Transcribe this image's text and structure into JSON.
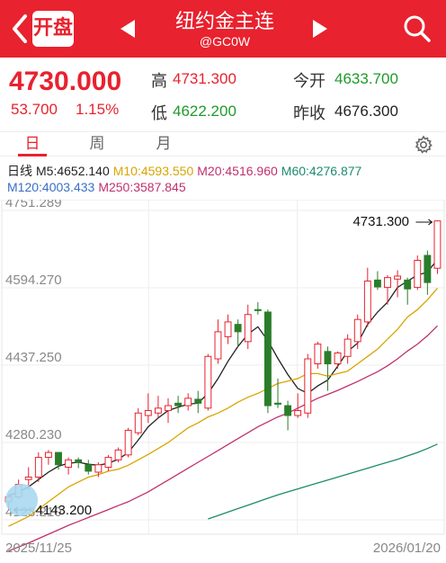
{
  "header": {
    "logo_text": "开盘",
    "title": "纽约金主连",
    "code": "@GC0W"
  },
  "quote": {
    "price": "4730.000",
    "change": "53.700",
    "change_pct": "1.15%",
    "high_label": "高",
    "high": "4731.300",
    "low_label": "低",
    "low": "4622.200",
    "open_label": "今开",
    "open": "4633.700",
    "prev_close_label": "昨收",
    "prev_close": "4676.300"
  },
  "tabs": [
    {
      "label": "日"
    },
    {
      "label": "周"
    },
    {
      "label": "月"
    }
  ],
  "indicators": {
    "line1": {
      "period": "日线",
      "m5": "M5:4652.140",
      "m10": "M10:4593.550",
      "m20": "M20:4516.960",
      "m60": "M60:4276.877"
    },
    "line2": {
      "m120": "M120:4003.433",
      "m250": "M250:3587.845"
    }
  },
  "colors": {
    "up": "#e8222e",
    "down": "#2a7d2a",
    "m5": "#222222",
    "m10": "#d9a400",
    "m20": "#c0306e",
    "m60": "#1e8a6e",
    "m120": "#3a6fc4"
  },
  "chart_data": {
    "type": "candlestick",
    "y_ticks": [
      "4751.289",
      "4594.270",
      "4437.250",
      "4280.230",
      "4123.210"
    ],
    "ylim": [
      4123.21,
      4751.289
    ],
    "x_labels": [
      "2025/11/25",
      "2026/01/20"
    ],
    "max_label": "4731.300",
    "min_label": "4143.200",
    "candles": [
      [
        4160,
        4175,
        4143,
        4170
      ],
      [
        4170,
        4205,
        4165,
        4195
      ],
      [
        4205,
        4230,
        4185,
        4210
      ],
      [
        4210,
        4260,
        4200,
        4250
      ],
      [
        4250,
        4265,
        4235,
        4260
      ],
      [
        4260,
        4255,
        4225,
        4235
      ],
      [
        4230,
        4250,
        4215,
        4245
      ],
      [
        4245,
        4250,
        4228,
        4240
      ],
      [
        4235,
        4245,
        4215,
        4222
      ],
      [
        4220,
        4240,
        4210,
        4235
      ],
      [
        4230,
        4255,
        4222,
        4250
      ],
      [
        4245,
        4270,
        4240,
        4265
      ],
      [
        4255,
        4310,
        4250,
        4305
      ],
      [
        4300,
        4350,
        4295,
        4340
      ],
      [
        4335,
        4380,
        4320,
        4345
      ],
      [
        4340,
        4375,
        4330,
        4350
      ],
      [
        4345,
        4370,
        4320,
        4355
      ],
      [
        4360,
        4375,
        4340,
        4355
      ],
      [
        4355,
        4380,
        4345,
        4370
      ],
      [
        4368,
        4385,
        4340,
        4360
      ],
      [
        4350,
        4460,
        4345,
        4455
      ],
      [
        4450,
        4530,
        4440,
        4505
      ],
      [
        4495,
        4540,
        4480,
        4525
      ],
      [
        4520,
        4530,
        4475,
        4505
      ],
      [
        4485,
        4560,
        4470,
        4540
      ],
      [
        4550,
        4565,
        4540,
        4548
      ],
      [
        4545,
        4550,
        4340,
        4355
      ],
      [
        4360,
        4410,
        4350,
        4358
      ],
      [
        4355,
        4365,
        4305,
        4335
      ],
      [
        4335,
        4380,
        4330,
        4345
      ],
      [
        4340,
        4460,
        4330,
        4450
      ],
      [
        4440,
        4485,
        4430,
        4480
      ],
      [
        4465,
        4475,
        4385,
        4440
      ],
      [
        4440,
        4465,
        4430,
        4462
      ],
      [
        4455,
        4500,
        4440,
        4490
      ],
      [
        4485,
        4540,
        4470,
        4530
      ],
      [
        4525,
        4635,
        4515,
        4608
      ],
      [
        4610,
        4628,
        4590,
        4596
      ],
      [
        4595,
        4620,
        4560,
        4615
      ],
      [
        4612,
        4630,
        4575,
        4618
      ],
      [
        4610,
        4615,
        4560,
        4592
      ],
      [
        4595,
        4660,
        4590,
        4650
      ],
      [
        4660,
        4670,
        4580,
        4605
      ],
      [
        4634,
        4731.3,
        4622.2,
        4730
      ]
    ],
    "series": [
      {
        "name": "M5",
        "values": [
          4172,
          4180,
          4190,
          4205,
          4220,
          4232,
          4238,
          4240,
          4236,
          4234,
          4238,
          4246,
          4260,
          4285,
          4312,
          4330,
          4345,
          4352,
          4358,
          4360,
          4380,
          4410,
          4445,
          4475,
          4500,
          4515,
          4487,
          4451,
          4418,
          4390,
          4380,
          4395,
          4407,
          4435,
          4465,
          4482,
          4520,
          4545,
          4565,
          4595,
          4608,
          4620,
          4626,
          4652
        ]
      },
      {
        "name": "M10",
        "values": [
          4110,
          4120,
          4130,
          4145,
          4160,
          4175,
          4190,
          4200,
          4210,
          4215,
          4222,
          4226,
          4234,
          4245,
          4256,
          4268,
          4280,
          4295,
          4310,
          4320,
          4332,
          4340,
          4350,
          4362,
          4372,
          4380,
          4390,
          4400,
          4405,
          4410,
          4420,
          4420,
          4415,
          4420,
          4425,
          4440,
          4455,
          4470,
          4490,
          4510,
          4535,
          4550,
          4570,
          4593.5
        ]
      },
      {
        "name": "M20",
        "values": [
          4060,
          4068,
          4076,
          4085,
          4094,
          4103,
          4112,
          4120,
          4128,
          4136,
          4144,
          4152,
          4160,
          4170,
          4180,
          4192,
          4204,
          4216,
          4228,
          4240,
          4252,
          4264,
          4276,
          4288,
          4300,
          4312,
          4322,
          4332,
          4340,
          4350,
          4360,
          4370,
          4378,
          4386,
          4395,
          4404,
          4414,
          4424,
          4436,
          4450,
          4466,
          4480,
          4497,
          4517
        ]
      },
      {
        "name": "M60",
        "values": [
          null,
          null,
          null,
          null,
          null,
          null,
          null,
          null,
          null,
          null,
          null,
          null,
          null,
          null,
          null,
          null,
          null,
          null,
          null,
          null,
          4125,
          4132,
          4139,
          4146,
          4153,
          4160,
          4167,
          4174,
          4180,
          4186,
          4192,
          4198,
          4204,
          4210,
          4216,
          4222,
          4228,
          4234,
          4240,
          4246,
          4253,
          4260,
          4268,
          4276.9
        ]
      }
    ]
  }
}
